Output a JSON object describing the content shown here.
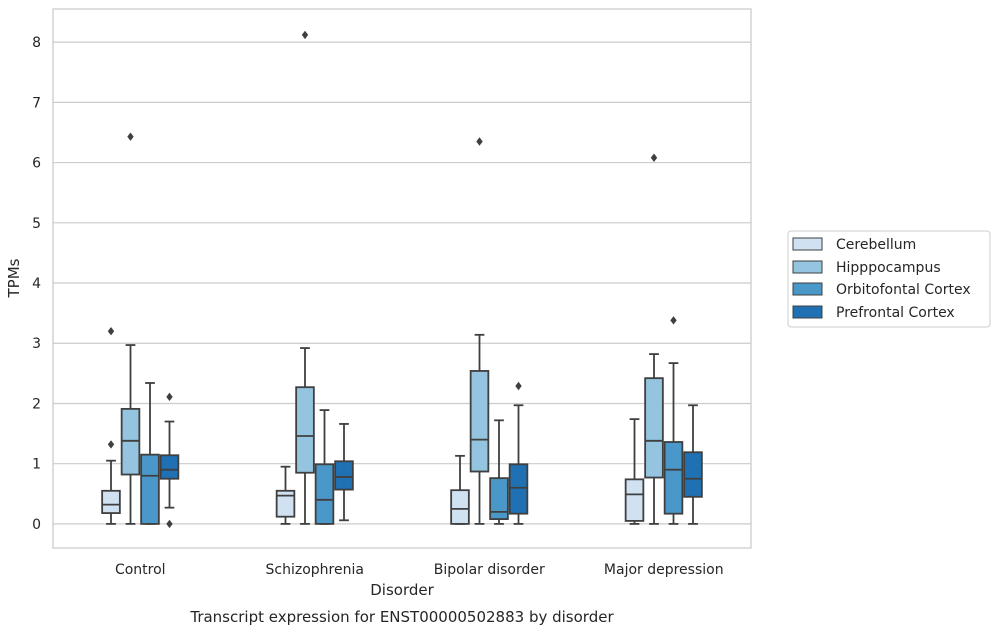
{
  "chart_data": {
    "type": "box",
    "title": "Transcript expression for ENST00000502883 by disorder",
    "xlabel": "Disorder",
    "ylabel": "TPMs",
    "ylim": [
      -0.4,
      8.55
    ],
    "yticks": [
      0,
      1,
      2,
      3,
      4,
      5,
      6,
      7,
      8
    ],
    "grid": "horizontal",
    "legend_position": "right",
    "categories": [
      "Control",
      "Schizophrenia",
      "Bipolar disorder",
      "Major depression"
    ],
    "series": [
      {
        "name": "Cerebellum",
        "color": "#d0e1f2",
        "boxes": [
          {
            "whislo": 0.0,
            "q1": 0.18,
            "med": 0.32,
            "q3": 0.55,
            "whishi": 1.05,
            "fliers": [
              1.32,
              3.2
            ]
          },
          {
            "whislo": 0.0,
            "q1": 0.12,
            "med": 0.47,
            "q3": 0.55,
            "whishi": 0.95,
            "fliers": []
          },
          {
            "whislo": 0.0,
            "q1": 0.0,
            "med": 0.25,
            "q3": 0.56,
            "whishi": 1.13,
            "fliers": []
          },
          {
            "whislo": 0.0,
            "q1": 0.05,
            "med": 0.49,
            "q3": 0.74,
            "whishi": 1.74,
            "fliers": []
          }
        ]
      },
      {
        "name": "Hipppocampus",
        "color": "#94c4df",
        "boxes": [
          {
            "whislo": 0.0,
            "q1": 0.82,
            "med": 1.38,
            "q3": 1.91,
            "whishi": 2.97,
            "fliers": [
              6.43
            ]
          },
          {
            "whislo": 0.0,
            "q1": 0.85,
            "med": 1.46,
            "q3": 2.27,
            "whishi": 2.92,
            "fliers": [
              8.12
            ]
          },
          {
            "whislo": 0.0,
            "q1": 0.87,
            "med": 1.4,
            "q3": 2.54,
            "whishi": 3.14,
            "fliers": [
              6.35
            ]
          },
          {
            "whislo": 0.0,
            "q1": 0.77,
            "med": 1.38,
            "q3": 2.42,
            "whishi": 2.82,
            "fliers": [
              6.08
            ]
          }
        ]
      },
      {
        "name": "Orbitofontal Cortex",
        "color": "#4a98c9",
        "boxes": [
          {
            "whislo": 0.0,
            "q1": 0.0,
            "med": 0.8,
            "q3": 1.15,
            "whishi": 2.34,
            "fliers": []
          },
          {
            "whislo": 0.0,
            "q1": 0.0,
            "med": 0.4,
            "q3": 0.99,
            "whishi": 1.89,
            "fliers": []
          },
          {
            "whislo": 0.0,
            "q1": 0.08,
            "med": 0.2,
            "q3": 0.76,
            "whishi": 1.72,
            "fliers": []
          },
          {
            "whislo": 0.0,
            "q1": 0.17,
            "med": 0.9,
            "q3": 1.36,
            "whishi": 2.67,
            "fliers": [
              3.38
            ]
          }
        ]
      },
      {
        "name": "Prefrontal Cortex",
        "color": "#2070b4",
        "boxes": [
          {
            "whislo": 0.27,
            "q1": 0.75,
            "med": 0.9,
            "q3": 1.14,
            "whishi": 1.7,
            "fliers": [
              0.0,
              2.11
            ]
          },
          {
            "whislo": 0.06,
            "q1": 0.57,
            "med": 0.78,
            "q3": 1.04,
            "whishi": 1.66,
            "fliers": []
          },
          {
            "whislo": 0.0,
            "q1": 0.17,
            "med": 0.6,
            "q3": 0.99,
            "whishi": 1.97,
            "fliers": [
              2.29
            ]
          },
          {
            "whislo": 0.0,
            "q1": 0.45,
            "med": 0.75,
            "q3": 1.19,
            "whishi": 1.97,
            "fliers": []
          }
        ]
      }
    ]
  }
}
